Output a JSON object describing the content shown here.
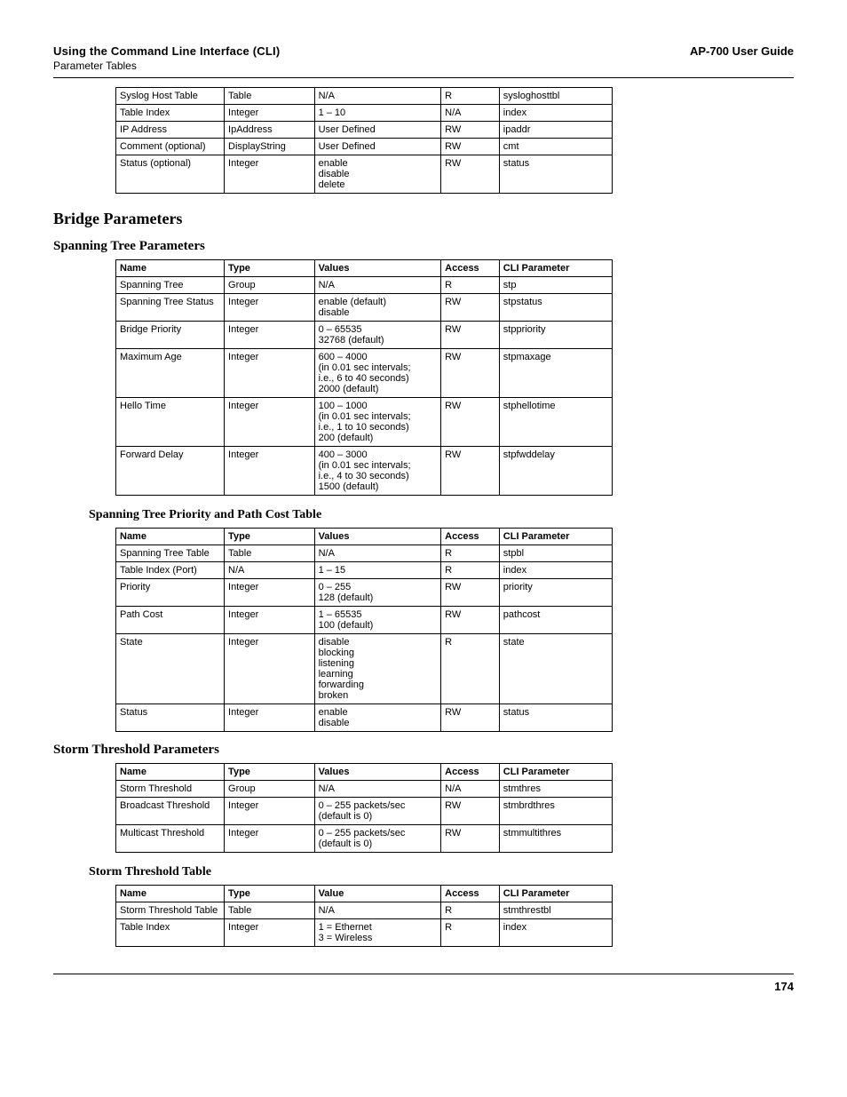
{
  "header": {
    "left": "Using the Command Line Interface (CLI)",
    "sub": "Parameter Tables",
    "right": "AP-700 User Guide"
  },
  "page_number": "174",
  "table1": {
    "rows": [
      {
        "name": "Syslog Host Table",
        "type": "Table",
        "values": "N/A",
        "access": "R",
        "cli": "sysloghosttbl"
      },
      {
        "name": "Table Index",
        "type": "Integer",
        "values": "1 – 10",
        "access": "N/A",
        "cli": "index"
      },
      {
        "name": "IP Address",
        "type": "IpAddress",
        "values": "User Defined",
        "access": "RW",
        "cli": "ipaddr"
      },
      {
        "name": "Comment (optional)",
        "type": "DisplayString",
        "values": "User Defined",
        "access": "RW",
        "cli": "cmt"
      },
      {
        "name": "Status (optional)",
        "type": "Integer",
        "values": "enable\ndisable\ndelete",
        "access": "RW",
        "cli": "status"
      }
    ]
  },
  "h_bridge": "Bridge Parameters",
  "h_stp": "Spanning Tree Parameters",
  "table2": {
    "headers": {
      "name": "Name",
      "type": "Type",
      "values": "Values",
      "access": "Access",
      "cli": "CLI Parameter"
    },
    "rows": [
      {
        "name": "Spanning Tree",
        "type": "Group",
        "values": "N/A",
        "access": "R",
        "cli": "stp"
      },
      {
        "name": "Spanning Tree Status",
        "type": "Integer",
        "values": "enable (default)\ndisable",
        "access": "RW",
        "cli": "stpstatus"
      },
      {
        "name": "Bridge Priority",
        "type": "Integer",
        "values": "0 – 65535\n32768 (default)",
        "access": "RW",
        "cli": "stppriority"
      },
      {
        "name": "Maximum Age",
        "type": "Integer",
        "values": "600 – 4000\n(in 0.01 sec intervals;\ni.e., 6 to 40 seconds)\n2000 (default)",
        "access": "RW",
        "cli": "stpmaxage"
      },
      {
        "name": "Hello Time",
        "type": "Integer",
        "values": "100 – 1000\n(in 0.01 sec intervals;\ni.e., 1 to 10 seconds)\n200 (default)",
        "access": "RW",
        "cli": "stphellotime"
      },
      {
        "name": "Forward Delay",
        "type": "Integer",
        "values": "400 – 3000\n(in 0.01 sec intervals;\ni.e., 4 to 30 seconds)\n1500 (default)",
        "access": "RW",
        "cli": "stpfwddelay"
      }
    ]
  },
  "h_stp_prio": "Spanning Tree Priority and Path Cost Table",
  "table3": {
    "headers": {
      "name": "Name",
      "type": "Type",
      "values": "Values",
      "access": "Access",
      "cli": "CLI Parameter"
    },
    "rows": [
      {
        "name": "Spanning Tree Table",
        "type": "Table",
        "values": "N/A",
        "access": "R",
        "cli": "stpbl"
      },
      {
        "name": "Table Index (Port)",
        "type": "N/A",
        "values": "1 – 15",
        "access": "R",
        "cli": "index"
      },
      {
        "name": "Priority",
        "type": "Integer",
        "values": "0 – 255\n128 (default)",
        "access": "RW",
        "cli": "priority"
      },
      {
        "name": "Path Cost",
        "type": "Integer",
        "values": "1 – 65535\n100 (default)",
        "access": "RW",
        "cli": "pathcost"
      },
      {
        "name": "State",
        "type": "Integer",
        "values": "disable\nblocking\nlistening\nlearning\nforwarding\nbroken",
        "access": "R",
        "cli": "state"
      },
      {
        "name": "Status",
        "type": "Integer",
        "values": "enable\ndisable",
        "access": "RW",
        "cli": "status"
      }
    ]
  },
  "h_storm": "Storm Threshold Parameters",
  "table4": {
    "headers": {
      "name": "Name",
      "type": "Type",
      "values": "Values",
      "access": "Access",
      "cli": "CLI Parameter"
    },
    "rows": [
      {
        "name": "Storm Threshold",
        "type": "Group",
        "values": "N/A",
        "access": "N/A",
        "cli": "stmthres"
      },
      {
        "name": "Broadcast Threshold",
        "type": "Integer",
        "values": "0 – 255 packets/sec\n(default is 0)",
        "access": "RW",
        "cli": "stmbrdthres"
      },
      {
        "name": "Multicast Threshold",
        "type": "Integer",
        "values": "0 – 255 packets/sec\n(default is 0)",
        "access": "RW",
        "cli": "stmmultithres"
      }
    ]
  },
  "h_storm_tbl": "Storm Threshold Table",
  "table5": {
    "headers": {
      "name": "Name",
      "type": "Type",
      "values": "Value",
      "access": "Access",
      "cli": "CLI Parameter"
    },
    "rows": [
      {
        "name": "Storm Threshold Table",
        "type": "Table",
        "values": "N/A",
        "access": "R",
        "cli": "stmthrestbl"
      },
      {
        "name": "Table Index",
        "type": "Integer",
        "values": "1 = Ethernet\n3 = Wireless",
        "access": "R",
        "cli": "index"
      }
    ]
  }
}
